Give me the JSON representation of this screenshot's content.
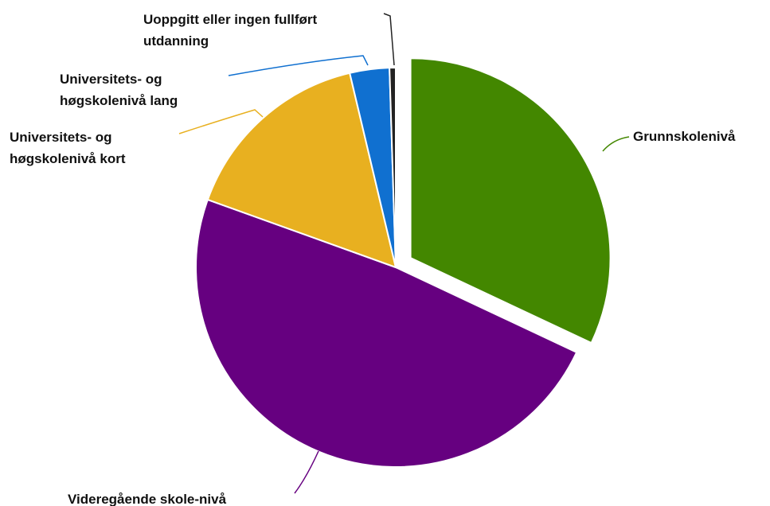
{
  "chart_data": {
    "type": "pie",
    "categories": [
      "Grunnskolenivå",
      "Videregående skole-nivå",
      "Universitets- og høgskolenivå kort",
      "Universitets- og høgskolenivå lang",
      "Uoppgitt eller ingen fullført utdanning"
    ],
    "values": [
      32,
      48.5,
      15.8,
      3.2,
      0.5
    ],
    "colors": [
      "#438700",
      "#660080",
      "#e8b020",
      "#1070d0",
      "#222222"
    ]
  }
}
